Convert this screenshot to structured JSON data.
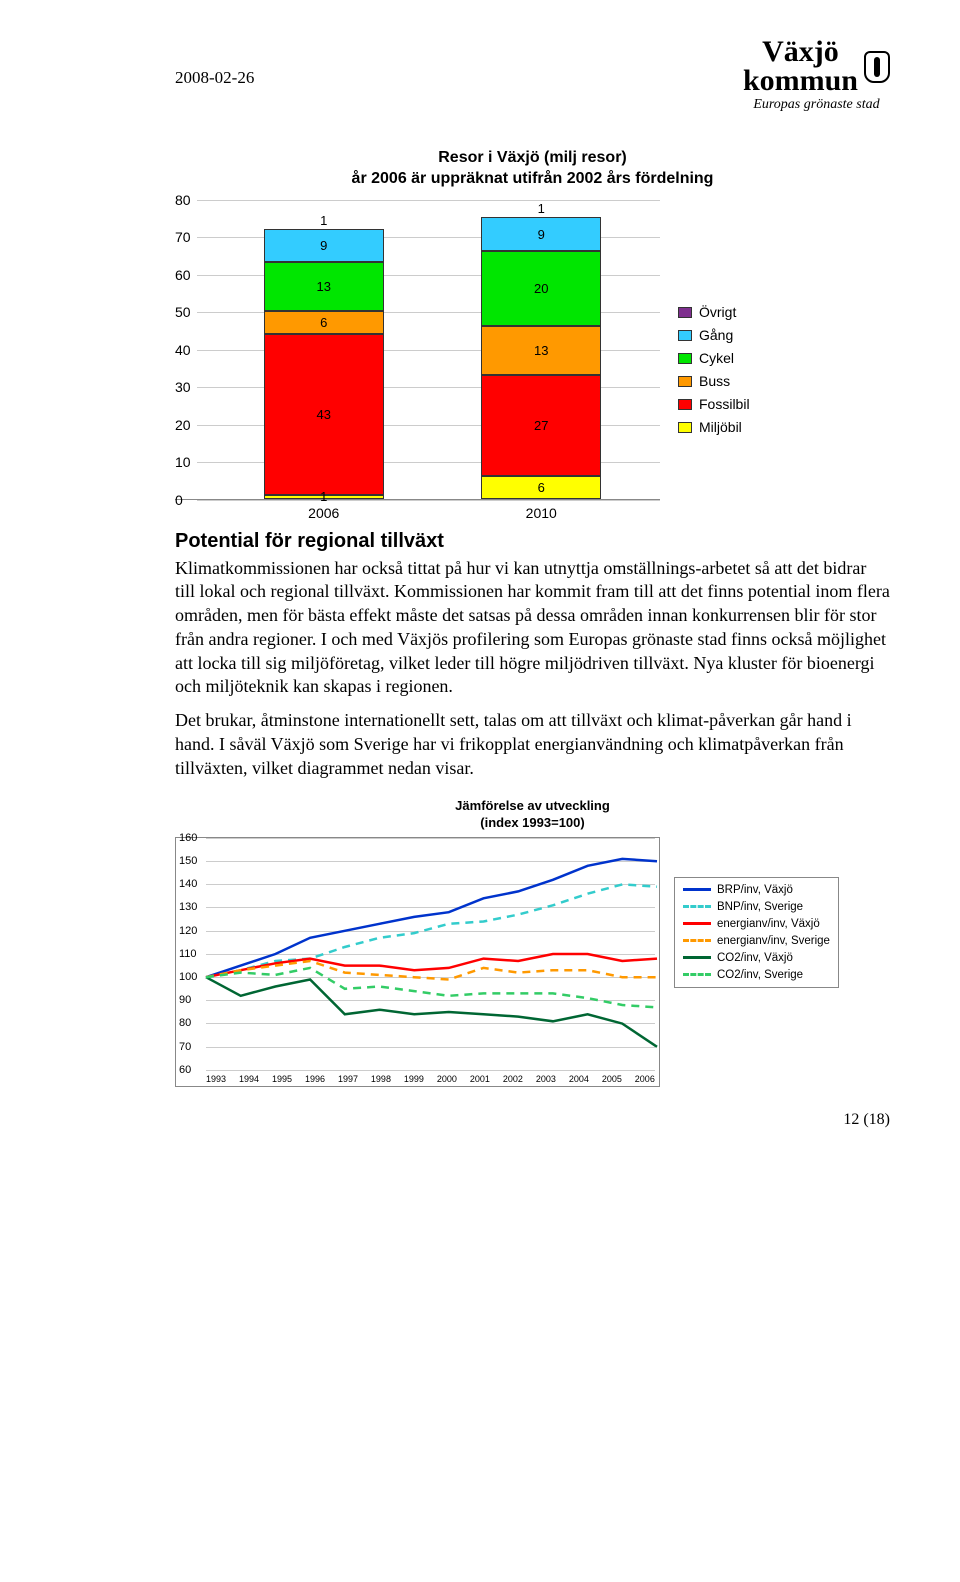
{
  "header": {
    "date": "2008-02-26"
  },
  "logo": {
    "line1": "Växjö",
    "line2": "kommun",
    "tagline": "Europas grönaste stad"
  },
  "chart1": {
    "title_l1": "Resor i Växjö (milj resor)",
    "title_l2": "år 2006 är uppräknat utifrån 2002 års fördelning",
    "ymax": 80,
    "ystep": 10,
    "legend": [
      {
        "label": "Övrigt",
        "color": "#7e2f8e"
      },
      {
        "label": "Gång",
        "color": "#33ccff"
      },
      {
        "label": "Cykel",
        "color": "#00e600"
      },
      {
        "label": "Buss",
        "color": "#ff9900"
      },
      {
        "label": "Fossilbil",
        "color": "#ff0000"
      },
      {
        "label": "Miljöbil",
        "color": "#ffff00"
      }
    ],
    "bars": [
      {
        "x": "2006",
        "stack": [
          {
            "v": 1,
            "c": "#ffff00"
          },
          {
            "v": 43,
            "c": "#ff0000"
          },
          {
            "v": 6,
            "c": "#ff9900"
          },
          {
            "v": 13,
            "c": "#00e600"
          },
          {
            "v": 9,
            "c": "#33ccff",
            "topnum": "1"
          }
        ]
      },
      {
        "x": "2010",
        "stack": [
          {
            "v": 6,
            "c": "#ffff00"
          },
          {
            "v": 27,
            "c": "#ff0000"
          },
          {
            "v": 13,
            "c": "#ff9900"
          },
          {
            "v": 20,
            "c": "#00e600"
          },
          {
            "v": 9,
            "c": "#33ccff",
            "topnum": "1"
          }
        ]
      }
    ]
  },
  "section_title": "Potential för regional tillväxt",
  "para1": "Klimatkommissionen har också tittat på hur vi kan utnyttja omställnings-arbetet så att det bidrar till lokal och regional tillväxt. Kommissionen har kommit fram till att det finns potential inom flera områden, men för bästa effekt måste det satsas på dessa områden innan konkurrensen blir för stor från andra regioner. I och med Växjös profilering som Europas grönaste stad finns också möjlighet att locka till sig miljöföretag, vilket leder till högre miljödriven tillväxt. Nya kluster för bioenergi och miljöteknik kan skapas i regionen.",
  "para2": "Det brukar, åtminstone internationellt sett, talas om att tillväxt och klimat-påverkan går hand i hand. I såväl Växjö som Sverige har vi frikopplat energianvändning och klimatpåverkan från tillväxten, vilket diagrammet nedan visar.",
  "chart2": {
    "title_l1": "Jämförelse av utveckling",
    "title_l2": "(index 1993=100)",
    "ymin": 60,
    "ymax": 160,
    "ystep": 10,
    "years": [
      "1993",
      "1994",
      "1995",
      "1996",
      "1997",
      "1998",
      "1999",
      "2000",
      "2001",
      "2002",
      "2003",
      "2004",
      "2005",
      "2006"
    ],
    "series": [
      {
        "label": "BRP/inv, Växjö",
        "color": "#0033cc",
        "dash": false,
        "vals": [
          100,
          105,
          110,
          117,
          120,
          123,
          126,
          128,
          134,
          137,
          142,
          148,
          151,
          150
        ]
      },
      {
        "label": "BNP/inv, Sverige",
        "color": "#33cccc",
        "dash": true,
        "vals": [
          100,
          103,
          107,
          108,
          113,
          117,
          119,
          123,
          124,
          127,
          131,
          136,
          140,
          139
        ]
      },
      {
        "label": "energianv/inv, Växjö",
        "color": "#ff0000",
        "dash": false,
        "vals": [
          100,
          103,
          106,
          108,
          105,
          105,
          103,
          104,
          108,
          107,
          110,
          110,
          107,
          108
        ]
      },
      {
        "label": "energianv/inv, Sverige",
        "color": "#ff9900",
        "dash": true,
        "vals": [
          100,
          103,
          105,
          107,
          102,
          101,
          100,
          99,
          104,
          102,
          103,
          103,
          100,
          100
        ]
      },
      {
        "label": "CO2/inv, Växjö",
        "color": "#006633",
        "dash": false,
        "vals": [
          100,
          92,
          96,
          99,
          84,
          86,
          84,
          85,
          84,
          83,
          81,
          84,
          80,
          70
        ]
      },
      {
        "label": "CO2/inv, Sverige",
        "color": "#33cc66",
        "dash": true,
        "vals": [
          100,
          102,
          101,
          104,
          95,
          96,
          94,
          92,
          93,
          93,
          93,
          91,
          88,
          87
        ]
      }
    ]
  },
  "footer": "12 (18)"
}
